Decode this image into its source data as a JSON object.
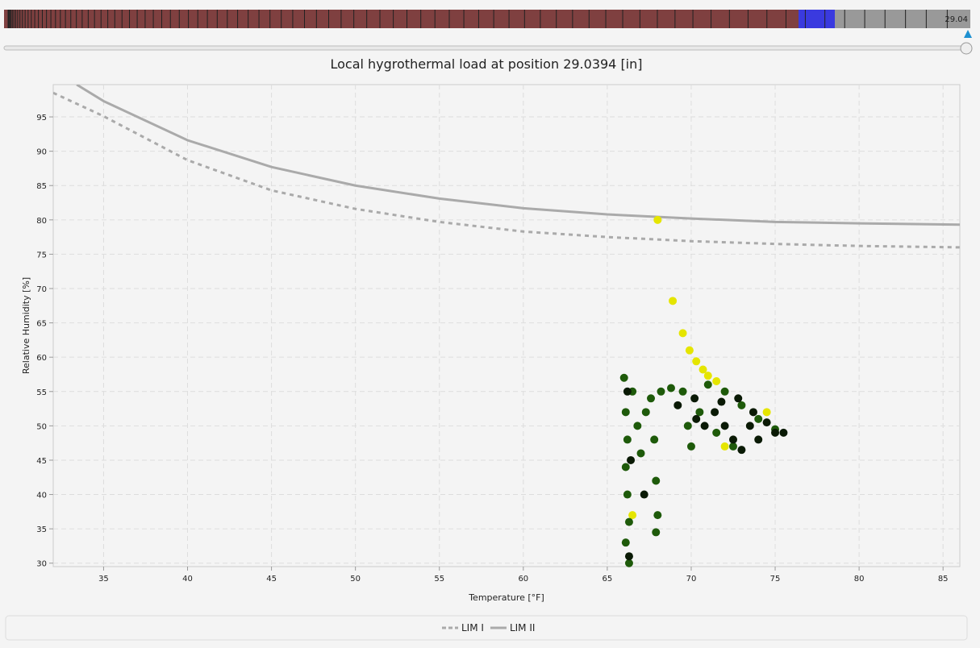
{
  "slider": {
    "value_label": "29.04"
  },
  "chart_data": {
    "type": "scatter",
    "title": "Local hygrothermal load at position 29.0394 [in]",
    "x_label": "Temperature [°F]",
    "y_label": "Relative Humidity [%]",
    "xlim": [
      32,
      86
    ],
    "ylim": [
      29.5,
      99.7
    ],
    "xticks": [
      35,
      40,
      45,
      50,
      55,
      60,
      65,
      70,
      75,
      80,
      85
    ],
    "yticks": [
      30,
      35,
      40,
      45,
      50,
      55,
      60,
      65,
      70,
      75,
      80,
      85,
      90,
      95
    ],
    "grid": true,
    "legend": "bottom",
    "series": [
      {
        "name": "LIM I",
        "color": "#aaaaaa",
        "kind": "line",
        "dashed": true,
        "x": [
          32,
          35,
          40,
          45,
          50,
          55,
          60,
          65,
          70,
          75,
          80,
          86
        ],
        "values": [
          98.5,
          95.1,
          88.7,
          84.3,
          81.6,
          79.7,
          78.3,
          77.5,
          76.9,
          76.5,
          76.2,
          76.0
        ]
      },
      {
        "name": "LIM II",
        "color": "#aaaaaa",
        "kind": "line",
        "dashed": false,
        "x": [
          33.4,
          35,
          40,
          45,
          50,
          55,
          60,
          65,
          70,
          75,
          80,
          86
        ],
        "values": [
          99.7,
          97.3,
          91.6,
          87.7,
          85.0,
          83.1,
          81.7,
          80.8,
          80.2,
          79.7,
          79.5,
          79.3
        ]
      },
      {
        "color": "#e5e500",
        "kind": "scatter",
        "x": [
          68,
          68.9,
          69.5,
          69.9,
          70.3,
          70.7,
          71,
          71.5,
          74.5,
          72,
          66.5
        ],
        "values": [
          80,
          68.2,
          63.5,
          61,
          59.4,
          58.2,
          57.3,
          56.5,
          52,
          47,
          37
        ]
      },
      {
        "color": "#1e5a0a",
        "kind": "scatter",
        "x": [
          66,
          66.1,
          66.2,
          66.1,
          66.2,
          66.3,
          66.1,
          66.3,
          66.5,
          66.8,
          67,
          67.3,
          67.6,
          67.8,
          67.9,
          68,
          67.9,
          68.2,
          68.8,
          69.5,
          69.8,
          70,
          70.5,
          71,
          72,
          73,
          74,
          75,
          71.5,
          72.5
        ],
        "values": [
          57,
          52,
          48,
          44,
          40,
          36,
          33,
          30,
          55,
          50,
          46,
          52,
          54,
          48,
          42,
          37,
          34.5,
          55,
          55.5,
          55,
          50,
          47,
          52,
          56,
          55,
          53,
          51,
          49.5,
          49,
          47
        ]
      },
      {
        "color": "#0a1a05",
        "kind": "scatter",
        "x": [
          66.2,
          66.4,
          66.3,
          67.2,
          69.2,
          70.3,
          70.8,
          71.4,
          72,
          72.5,
          73,
          73.5,
          74,
          74.5,
          75,
          75.5,
          72.8,
          73.7,
          71.8,
          70.2
        ],
        "values": [
          55,
          45,
          31,
          40,
          53,
          51,
          50,
          52,
          50,
          48,
          46.5,
          50,
          48,
          50.5,
          49,
          49,
          54,
          52,
          53.5,
          54
        ]
      }
    ]
  }
}
